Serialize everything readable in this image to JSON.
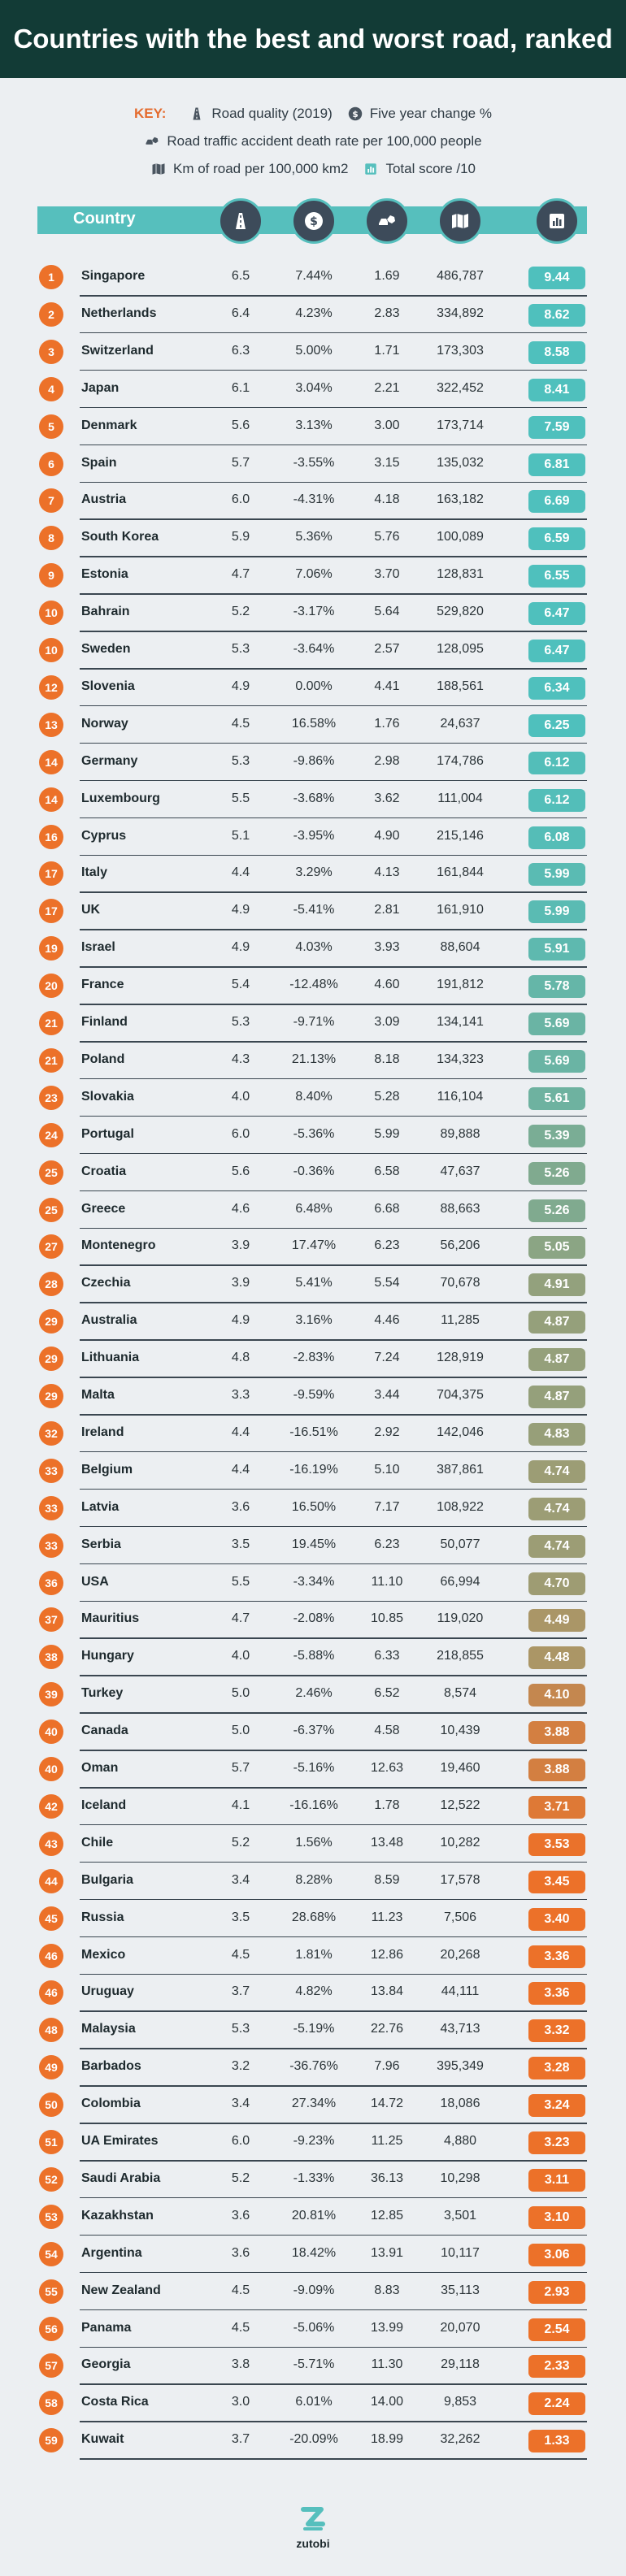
{
  "title": "Countries with the best and worst road, ranked",
  "key": {
    "label": "KEY:",
    "items": [
      {
        "icon": "road-icon",
        "text": "Road quality (2019)"
      },
      {
        "icon": "dollar-icon",
        "text": "Five year change %"
      },
      {
        "icon": "crash-icon",
        "text": "Road traffic accident death rate per 100,000 people"
      },
      {
        "icon": "map-icon",
        "text": "Km of road per 100,000 km2"
      },
      {
        "icon": "score-icon",
        "text": "Total score /10"
      }
    ]
  },
  "colors": {
    "title_bg": "#123b36",
    "header_band": "#56bfbd",
    "header_circle": "#3d4b5a",
    "rank_badge": "#ec7129",
    "score_high": "#4fc0bd",
    "score_mid": "#a39a6e",
    "score_low": "#ec7129",
    "key_accent": "#e46b2e"
  },
  "brand": "zutobi",
  "chart_data": {
    "type": "table",
    "columns": [
      "Country",
      "Road quality (2019)",
      "Five year change %",
      "Road traffic accident death rate per 100,000 people",
      "Km of road per 100,000 km2",
      "Total score /10"
    ],
    "header_label": "Country",
    "rows": [
      {
        "rank": "1",
        "country": "Singapore",
        "quality": "6.5",
        "change": "7.44%",
        "deaths": "1.69",
        "km": "486,787",
        "score": "9.44"
      },
      {
        "rank": "2",
        "country": "Netherlands",
        "quality": "6.4",
        "change": "4.23%",
        "deaths": "2.83",
        "km": "334,892",
        "score": "8.62"
      },
      {
        "rank": "3",
        "country": "Switzerland",
        "quality": "6.3",
        "change": "5.00%",
        "deaths": "1.71",
        "km": "173,303",
        "score": "8.58"
      },
      {
        "rank": "4",
        "country": "Japan",
        "quality": "6.1",
        "change": "3.04%",
        "deaths": "2.21",
        "km": "322,452",
        "score": "8.41"
      },
      {
        "rank": "5",
        "country": "Denmark",
        "quality": "5.6",
        "change": "3.13%",
        "deaths": "3.00",
        "km": "173,714",
        "score": "7.59"
      },
      {
        "rank": "6",
        "country": "Spain",
        "quality": "5.7",
        "change": "-3.55%",
        "deaths": "3.15",
        "km": "135,032",
        "score": "6.81"
      },
      {
        "rank": "7",
        "country": "Austria",
        "quality": "6.0",
        "change": "-4.31%",
        "deaths": "4.18",
        "km": "163,182",
        "score": "6.69"
      },
      {
        "rank": "8",
        "country": "South Korea",
        "quality": "5.9",
        "change": "5.36%",
        "deaths": "5.76",
        "km": "100,089",
        "score": "6.59"
      },
      {
        "rank": "9",
        "country": "Estonia",
        "quality": "4.7",
        "change": "7.06%",
        "deaths": "3.70",
        "km": "128,831",
        "score": "6.55"
      },
      {
        "rank": "10",
        "country": "Bahrain",
        "quality": "5.2",
        "change": "-3.17%",
        "deaths": "5.64",
        "km": "529,820",
        "score": "6.47"
      },
      {
        "rank": "10",
        "country": "Sweden",
        "quality": "5.3",
        "change": "-3.64%",
        "deaths": "2.57",
        "km": "128,095",
        "score": "6.47"
      },
      {
        "rank": "12",
        "country": "Slovenia",
        "quality": "4.9",
        "change": "0.00%",
        "deaths": "4.41",
        "km": "188,561",
        "score": "6.34"
      },
      {
        "rank": "13",
        "country": "Norway",
        "quality": "4.5",
        "change": "16.58%",
        "deaths": "1.76",
        "km": "24,637",
        "score": "6.25"
      },
      {
        "rank": "14",
        "country": "Germany",
        "quality": "5.3",
        "change": "-9.86%",
        "deaths": "2.98",
        "km": "174,786",
        "score": "6.12"
      },
      {
        "rank": "14",
        "country": "Luxembourg",
        "quality": "5.5",
        "change": "-3.68%",
        "deaths": "3.62",
        "km": "111,004",
        "score": "6.12"
      },
      {
        "rank": "16",
        "country": "Cyprus",
        "quality": "5.1",
        "change": "-3.95%",
        "deaths": "4.90",
        "km": "215,146",
        "score": "6.08"
      },
      {
        "rank": "17",
        "country": "Italy",
        "quality": "4.4",
        "change": "3.29%",
        "deaths": "4.13",
        "km": "161,844",
        "score": "5.99"
      },
      {
        "rank": "17",
        "country": "UK",
        "quality": "4.9",
        "change": "-5.41%",
        "deaths": "2.81",
        "km": "161,910",
        "score": "5.99"
      },
      {
        "rank": "19",
        "country": "Israel",
        "quality": "4.9",
        "change": "4.03%",
        "deaths": "3.93",
        "km": "88,604",
        "score": "5.91"
      },
      {
        "rank": "20",
        "country": "France",
        "quality": "5.4",
        "change": "-12.48%",
        "deaths": "4.60",
        "km": "191,812",
        "score": "5.78"
      },
      {
        "rank": "21",
        "country": "Finland",
        "quality": "5.3",
        "change": "-9.71%",
        "deaths": "3.09",
        "km": "134,141",
        "score": "5.69"
      },
      {
        "rank": "21",
        "country": "Poland",
        "quality": "4.3",
        "change": "21.13%",
        "deaths": "8.18",
        "km": "134,323",
        "score": "5.69"
      },
      {
        "rank": "23",
        "country": "Slovakia",
        "quality": "4.0",
        "change": "8.40%",
        "deaths": "5.28",
        "km": "116,104",
        "score": "5.61"
      },
      {
        "rank": "24",
        "country": "Portugal",
        "quality": "6.0",
        "change": "-5.36%",
        "deaths": "5.99",
        "km": "89,888",
        "score": "5.39"
      },
      {
        "rank": "25",
        "country": "Croatia",
        "quality": "5.6",
        "change": "-0.36%",
        "deaths": "6.58",
        "km": "47,637",
        "score": "5.26"
      },
      {
        "rank": "25",
        "country": "Greece",
        "quality": "4.6",
        "change": "6.48%",
        "deaths": "6.68",
        "km": "88,663",
        "score": "5.26"
      },
      {
        "rank": "27",
        "country": "Montenegro",
        "quality": "3.9",
        "change": "17.47%",
        "deaths": "6.23",
        "km": "56,206",
        "score": "5.05"
      },
      {
        "rank": "28",
        "country": "Czechia",
        "quality": "3.9",
        "change": "5.41%",
        "deaths": "5.54",
        "km": "70,678",
        "score": "4.91"
      },
      {
        "rank": "29",
        "country": "Australia",
        "quality": "4.9",
        "change": "3.16%",
        "deaths": "4.46",
        "km": "11,285",
        "score": "4.87"
      },
      {
        "rank": "29",
        "country": "Lithuania",
        "quality": "4.8",
        "change": "-2.83%",
        "deaths": "7.24",
        "km": "128,919",
        "score": "4.87"
      },
      {
        "rank": "29",
        "country": "Malta",
        "quality": "3.3",
        "change": "-9.59%",
        "deaths": "3.44",
        "km": "704,375",
        "score": "4.87"
      },
      {
        "rank": "32",
        "country": "Ireland",
        "quality": "4.4",
        "change": "-16.51%",
        "deaths": "2.92",
        "km": "142,046",
        "score": "4.83"
      },
      {
        "rank": "33",
        "country": "Belgium",
        "quality": "4.4",
        "change": "-16.19%",
        "deaths": "5.10",
        "km": "387,861",
        "score": "4.74"
      },
      {
        "rank": "33",
        "country": "Latvia",
        "quality": "3.6",
        "change": "16.50%",
        "deaths": "7.17",
        "km": "108,922",
        "score": "4.74"
      },
      {
        "rank": "33",
        "country": "Serbia",
        "quality": "3.5",
        "change": "19.45%",
        "deaths": "6.23",
        "km": "50,077",
        "score": "4.74"
      },
      {
        "rank": "36",
        "country": "USA",
        "quality": "5.5",
        "change": "-3.34%",
        "deaths": "11.10",
        "km": "66,994",
        "score": "4.70"
      },
      {
        "rank": "37",
        "country": "Mauritius",
        "quality": "4.7",
        "change": "-2.08%",
        "deaths": "10.85",
        "km": "119,020",
        "score": "4.49"
      },
      {
        "rank": "38",
        "country": "Hungary",
        "quality": "4.0",
        "change": "-5.88%",
        "deaths": "6.33",
        "km": "218,855",
        "score": "4.48"
      },
      {
        "rank": "39",
        "country": "Turkey",
        "quality": "5.0",
        "change": "2.46%",
        "deaths": "6.52",
        "km": "8,574",
        "score": "4.10"
      },
      {
        "rank": "40",
        "country": "Canada",
        "quality": "5.0",
        "change": "-6.37%",
        "deaths": "4.58",
        "km": "10,439",
        "score": "3.88"
      },
      {
        "rank": "40",
        "country": "Oman",
        "quality": "5.7",
        "change": "-5.16%",
        "deaths": "12.63",
        "km": "19,460",
        "score": "3.88"
      },
      {
        "rank": "42",
        "country": "Iceland",
        "quality": "4.1",
        "change": "-16.16%",
        "deaths": "1.78",
        "km": "12,522",
        "score": "3.71"
      },
      {
        "rank": "43",
        "country": "Chile",
        "quality": "5.2",
        "change": "1.56%",
        "deaths": "13.48",
        "km": "10,282",
        "score": "3.53"
      },
      {
        "rank": "44",
        "country": "Bulgaria",
        "quality": "3.4",
        "change": "8.28%",
        "deaths": "8.59",
        "km": "17,578",
        "score": "3.45"
      },
      {
        "rank": "45",
        "country": "Russia",
        "quality": "3.5",
        "change": "28.68%",
        "deaths": "11.23",
        "km": "7,506",
        "score": "3.40"
      },
      {
        "rank": "46",
        "country": "Mexico",
        "quality": "4.5",
        "change": "1.81%",
        "deaths": "12.86",
        "km": "20,268",
        "score": "3.36"
      },
      {
        "rank": "46",
        "country": "Uruguay",
        "quality": "3.7",
        "change": "4.82%",
        "deaths": "13.84",
        "km": "44,111",
        "score": "3.36"
      },
      {
        "rank": "48",
        "country": "Malaysia",
        "quality": "5.3",
        "change": "-5.19%",
        "deaths": "22.76",
        "km": "43,713",
        "score": "3.32"
      },
      {
        "rank": "49",
        "country": "Barbados",
        "quality": "3.2",
        "change": "-36.76%",
        "deaths": "7.96",
        "km": "395,349",
        "score": "3.28"
      },
      {
        "rank": "50",
        "country": "Colombia",
        "quality": "3.4",
        "change": "27.34%",
        "deaths": "14.72",
        "km": "18,086",
        "score": "3.24"
      },
      {
        "rank": "51",
        "country": "UA Emirates",
        "quality": "6.0",
        "change": "-9.23%",
        "deaths": "11.25",
        "km": "4,880",
        "score": "3.23"
      },
      {
        "rank": "52",
        "country": "Saudi Arabia",
        "quality": "5.2",
        "change": "-1.33%",
        "deaths": "36.13",
        "km": "10,298",
        "score": "3.11"
      },
      {
        "rank": "53",
        "country": "Kazakhstan",
        "quality": "3.6",
        "change": "20.81%",
        "deaths": "12.85",
        "km": "3,501",
        "score": "3.10"
      },
      {
        "rank": "54",
        "country": "Argentina",
        "quality": "3.6",
        "change": "18.42%",
        "deaths": "13.91",
        "km": "10,117",
        "score": "3.06"
      },
      {
        "rank": "55",
        "country": "New Zealand",
        "quality": "4.5",
        "change": "-9.09%",
        "deaths": "8.83",
        "km": "35,113",
        "score": "2.93"
      },
      {
        "rank": "56",
        "country": "Panama",
        "quality": "4.5",
        "change": "-5.06%",
        "deaths": "13.99",
        "km": "20,070",
        "score": "2.54"
      },
      {
        "rank": "57",
        "country": "Georgia",
        "quality": "3.8",
        "change": "-5.71%",
        "deaths": "11.30",
        "km": "29,118",
        "score": "2.33"
      },
      {
        "rank": "58",
        "country": "Costa Rica",
        "quality": "3.0",
        "change": "6.01%",
        "deaths": "14.00",
        "km": "9,853",
        "score": "2.24"
      },
      {
        "rank": "59",
        "country": "Kuwait",
        "quality": "3.7",
        "change": "-20.09%",
        "deaths": "18.99",
        "km": "32,262",
        "score": "1.33"
      }
    ]
  }
}
